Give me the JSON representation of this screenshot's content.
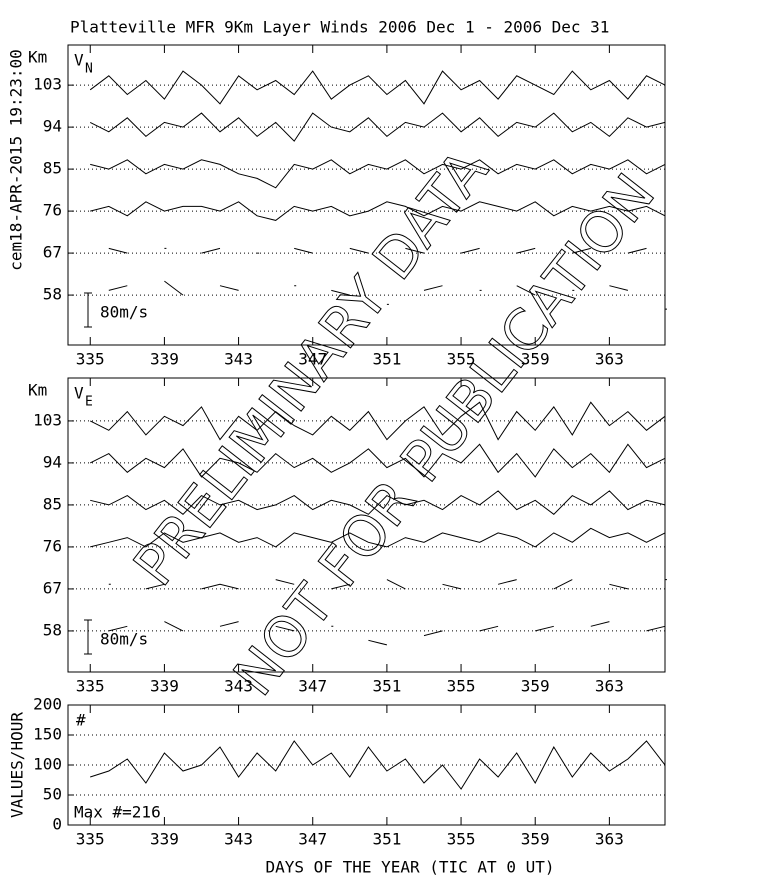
{
  "stamp": "cem18-APR-2015 19:23:00",
  "chart_data": [
    {
      "type": "line",
      "title": "Platteville MFR 9Km Layer Winds 2006 Dec  1 - 2006 Dec 31",
      "y_label": "Km",
      "panel_label": "V",
      "panel_label_sub": "N",
      "scale_label": "80m/s",
      "annotations": [
        "PRELIMINARY DATA",
        "NOT FOR PUBLICATION"
      ],
      "x": [
        335,
        336,
        337,
        338,
        339,
        340,
        341,
        342,
        343,
        344,
        345,
        346,
        347,
        348,
        349,
        350,
        351,
        352,
        353,
        354,
        355,
        356,
        357,
        358,
        359,
        360,
        361,
        362,
        363,
        364,
        365,
        366
      ],
      "xlim": [
        333.8,
        366
      ],
      "xticks": [
        335,
        339,
        343,
        347,
        351,
        355,
        359,
        363
      ],
      "ylim": [
        47.3,
        111.6
      ],
      "yticks": [
        58,
        67,
        76,
        85,
        94,
        103
      ],
      "grid": true,
      "color": "#000000",
      "series": [
        {
          "values": [
            102,
            105,
            101,
            104,
            100,
            106,
            103,
            99,
            105,
            102,
            104,
            101,
            106,
            100,
            103,
            105,
            101,
            104,
            99,
            106,
            102,
            104,
            100,
            105,
            103,
            101,
            106,
            102,
            104,
            100,
            105,
            103
          ]
        },
        {
          "values": [
            95,
            93,
            96,
            92,
            95,
            94,
            97,
            93,
            96,
            92,
            95,
            91,
            97,
            94,
            93,
            96,
            92,
            95,
            94,
            97,
            93,
            96,
            92,
            95,
            94,
            97,
            93,
            95,
            92,
            96,
            94,
            95
          ]
        },
        {
          "values": [
            86,
            85,
            87,
            84,
            86,
            85,
            87,
            86,
            84,
            83,
            81,
            86,
            85,
            87,
            84,
            86,
            85,
            87,
            84,
            86,
            85,
            87,
            84,
            86,
            85,
            87,
            84,
            86,
            85,
            87,
            84,
            86
          ]
        },
        {
          "values": [
            76,
            77,
            75,
            78,
            76,
            77,
            77,
            76,
            78,
            75,
            74,
            77,
            76,
            77,
            75,
            76,
            78,
            77,
            75,
            77,
            76,
            78,
            77,
            76,
            78,
            75,
            77,
            76,
            77,
            76,
            77,
            75
          ]
        },
        {
          "values": [
            null,
            68,
            67,
            null,
            68,
            null,
            67,
            68,
            null,
            67,
            null,
            68,
            67,
            null,
            68,
            67,
            null,
            68,
            67,
            null,
            67,
            68,
            null,
            67,
            68,
            null,
            67,
            68,
            null,
            67,
            68,
            null
          ]
        },
        {
          "values": [
            null,
            59,
            60,
            null,
            61,
            58,
            null,
            60,
            59,
            null,
            null,
            60,
            null,
            59,
            58,
            null,
            56,
            null,
            59,
            60,
            null,
            59,
            null,
            60,
            58,
            null,
            59,
            null,
            60,
            59,
            null,
            55
          ]
        }
      ]
    },
    {
      "type": "line",
      "y_label": "Km",
      "panel_label": "V",
      "panel_label_sub": "E",
      "scale_label": "80m/s",
      "x": [
        335,
        336,
        337,
        338,
        339,
        340,
        341,
        342,
        343,
        344,
        345,
        346,
        347,
        348,
        349,
        350,
        351,
        352,
        353,
        354,
        355,
        356,
        357,
        358,
        359,
        360,
        361,
        362,
        363,
        364,
        365,
        366
      ],
      "xlim": [
        333.8,
        366
      ],
      "xticks": [
        335,
        339,
        343,
        347,
        351,
        355,
        359,
        363
      ],
      "ylim": [
        49.2,
        112.2
      ],
      "yticks": [
        58,
        67,
        76,
        85,
        94,
        103
      ],
      "grid": true,
      "color": "#000000",
      "series": [
        {
          "values": [
            103,
            101,
            105,
            100,
            104,
            102,
            106,
            99,
            104,
            101,
            105,
            102,
            100,
            104,
            101,
            105,
            99,
            103,
            106,
            100,
            104,
            107,
            99,
            105,
            101,
            106,
            100,
            107,
            102,
            105,
            101,
            104
          ]
        },
        {
          "values": [
            94,
            96,
            92,
            95,
            93,
            97,
            91,
            95,
            94,
            92,
            96,
            93,
            95,
            92,
            94,
            97,
            93,
            95,
            91,
            96,
            94,
            98,
            92,
            96,
            91,
            97,
            93,
            96,
            92,
            98,
            93,
            95
          ]
        },
        {
          "values": [
            86,
            85,
            87,
            84,
            86,
            83,
            87,
            85,
            86,
            84,
            85,
            87,
            84,
            86,
            85,
            83,
            87,
            85,
            86,
            84,
            87,
            85,
            88,
            84,
            86,
            83,
            87,
            85,
            88,
            84,
            86,
            85
          ]
        },
        {
          "values": [
            76,
            77,
            78,
            76,
            79,
            77,
            78,
            79,
            77,
            78,
            76,
            79,
            78,
            77,
            79,
            77,
            76,
            78,
            77,
            79,
            78,
            77,
            79,
            78,
            76,
            79,
            77,
            80,
            78,
            79,
            77,
            79
          ]
        },
        {
          "values": [
            null,
            68,
            null,
            67,
            68,
            null,
            67,
            68,
            67,
            null,
            69,
            68,
            null,
            67,
            68,
            null,
            69,
            67,
            null,
            68,
            67,
            null,
            68,
            69,
            null,
            67,
            69,
            null,
            68,
            67,
            null,
            69
          ]
        },
        {
          "values": [
            null,
            58,
            59,
            null,
            60,
            58,
            null,
            59,
            60,
            null,
            59,
            58,
            null,
            59,
            null,
            56,
            55,
            null,
            57,
            58,
            null,
            58,
            59,
            null,
            58,
            59,
            null,
            59,
            60,
            null,
            58,
            59
          ]
        }
      ]
    },
    {
      "type": "line",
      "y_label": "VALUES/HOUR",
      "x_label": "DAYS OF THE YEAR (TIC AT 0 UT)",
      "panel_label": "#",
      "max_label": "Max #=216",
      "x": [
        335,
        336,
        337,
        338,
        339,
        340,
        341,
        342,
        343,
        344,
        345,
        346,
        347,
        348,
        349,
        350,
        351,
        352,
        353,
        354,
        355,
        356,
        357,
        358,
        359,
        360,
        361,
        362,
        363,
        364,
        365,
        366
      ],
      "xlim": [
        333.8,
        366
      ],
      "xticks": [
        335,
        339,
        343,
        347,
        351,
        355,
        359,
        363
      ],
      "ylim": [
        0,
        200
      ],
      "yticks": [
        0,
        50,
        100,
        150,
        200
      ],
      "grid": true,
      "color": "#000000",
      "series": [
        {
          "values": [
            80,
            90,
            110,
            70,
            120,
            90,
            100,
            130,
            80,
            120,
            90,
            140,
            100,
            120,
            80,
            130,
            90,
            110,
            70,
            100,
            60,
            110,
            80,
            120,
            70,
            130,
            80,
            120,
            90,
            110,
            140,
            100
          ]
        }
      ]
    }
  ]
}
